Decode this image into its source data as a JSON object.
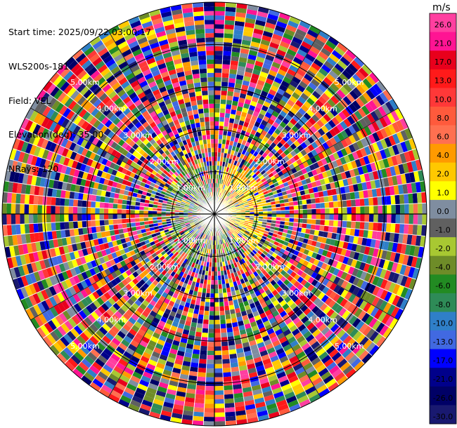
{
  "info": {
    "start_time": "Start time: 2025/09/22 03:00:17",
    "instrument": "WLS200s-181",
    "field": "Field: VEL",
    "elevation": "Elevation(deg): 35.00",
    "nrays": "NRays: 120"
  },
  "chart_data": {
    "type": "heatmap",
    "projection": "polar-ppi",
    "field": "VEL",
    "n_rays": 120,
    "range_rings_km": [
      "1.00km",
      "2.00km",
      "3.00km",
      "4.00km",
      "5.00km"
    ],
    "colorbar": {
      "unit": "m/s",
      "ticks": [
        "26.0",
        "21.0",
        "17.0",
        "13.0",
        "10.0",
        "8.0",
        "6.0",
        "4.0",
        "2.0",
        "1.0",
        "0.0",
        "-1.0",
        "-2.0",
        "-4.0",
        "-6.0",
        "-8.0",
        "-10.0",
        "-13.0",
        "-17.0",
        "-21.0",
        "-26.0",
        "-30.0"
      ],
      "colors": [
        "#ff3fa0",
        "#ff1493",
        "#e8001c",
        "#ff1a1a",
        "#ff3838",
        "#ff5a3c",
        "#ff7050",
        "#ff9a00",
        "#ffc800",
        "#ffff00",
        "#7f8da0",
        "#606060",
        "#a8c832",
        "#6e8c28",
        "#228b22",
        "#2e8b57",
        "#2f7fc8",
        "#4169e1",
        "#0000ff",
        "#00008b",
        "#000066",
        "#191970"
      ]
    }
  }
}
